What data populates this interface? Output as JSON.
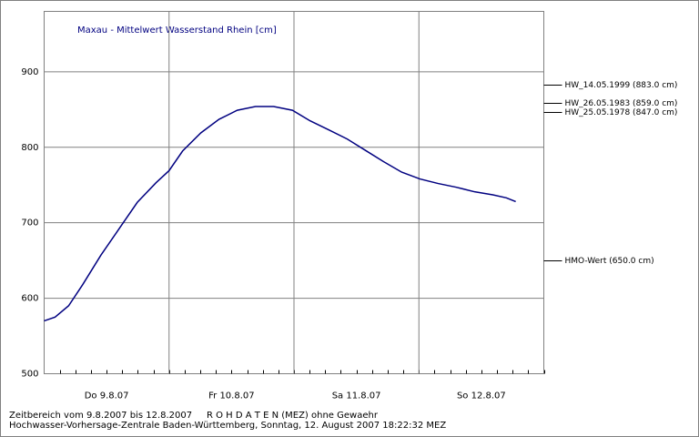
{
  "chart_data": {
    "type": "line",
    "title": "Maxau - Mittelwert Wasserstand Rhein [cm]",
    "categories": [
      "Do 9.8.07",
      "Fr 10.8.07",
      "Sa 11.8.07",
      "So 12.8.07"
    ],
    "xlim": [
      0,
      96
    ],
    "ylim": [
      500,
      980
    ],
    "yticks": [
      500,
      600,
      700,
      800,
      900
    ],
    "grid": true,
    "series": [
      {
        "color": "#000080",
        "x": [
          0,
          2.1,
          4.7,
          7.4,
          10.9,
          14.5,
          17.9,
          21.5,
          24,
          26.6,
          30.1,
          33.6,
          37.1,
          40.6,
          44.1,
          47.7,
          51.1,
          54.7,
          58.2,
          61.7,
          65.2,
          68.7,
          72.2,
          75.7,
          79.2,
          82.7,
          86.2,
          88.8,
          90.6
        ],
        "values": [
          570,
          575,
          590,
          618,
          657,
          693,
          727,
          753,
          769,
          795,
          819,
          837,
          849,
          854,
          854,
          849,
          835,
          823,
          811,
          796,
          781,
          767,
          758,
          752,
          747,
          741,
          737,
          733,
          728
        ]
      }
    ],
    "reference_lines": [
      {
        "label": "HW_14.05.1999 (883.0 cm)",
        "value": 883
      },
      {
        "label": "HW_26.05.1983 (859.0 cm)",
        "value": 859
      },
      {
        "label": "HW_25.05.1978 (847.0 cm)",
        "value": 847
      },
      {
        "label": "HMO-Wert (650.0 cm)",
        "value": 650
      }
    ],
    "footer": [
      "Zeitbereich vom 9.8.2007 bis 12.8.2007     R O H D A T E N (MEZ) ohne Gewaehr",
      "Hochwasser-Vorhersage-Zentrale Baden-Württemberg, Sonntag, 12. August 2007 18:22:32 MEZ"
    ]
  }
}
